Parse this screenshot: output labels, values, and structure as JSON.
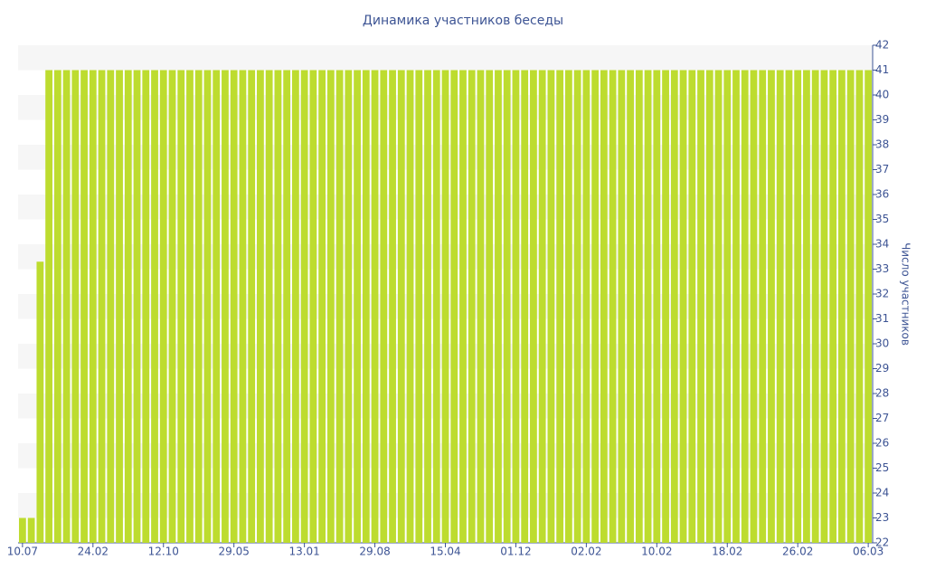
{
  "chart_data": {
    "type": "bar",
    "title": "Динамика участников беседы",
    "y_label": "Число участников",
    "categories": [
      "10.07",
      null,
      null,
      null,
      null,
      null,
      null,
      null,
      "24.02",
      null,
      null,
      null,
      null,
      null,
      null,
      null,
      "12.10",
      null,
      null,
      null,
      null,
      null,
      null,
      null,
      "29.05",
      null,
      null,
      null,
      null,
      null,
      null,
      null,
      "13.01",
      null,
      null,
      null,
      null,
      null,
      null,
      null,
      "29.08",
      null,
      null,
      null,
      null,
      null,
      null,
      null,
      "15.04",
      null,
      null,
      null,
      null,
      null,
      null,
      null,
      "01.12",
      null,
      null,
      null,
      null,
      null,
      null,
      null,
      "02.02",
      null,
      null,
      null,
      null,
      null,
      null,
      null,
      "10.02",
      null,
      null,
      null,
      null,
      null,
      null,
      null,
      "18.02",
      null,
      null,
      null,
      null,
      null,
      null,
      null,
      "26.02",
      null,
      null,
      null,
      null,
      null,
      null,
      null,
      "06.03"
    ],
    "values": [
      23,
      23,
      33.3,
      41,
      41,
      41,
      41,
      41,
      41,
      41,
      41,
      41,
      41,
      41,
      41,
      41,
      41,
      41,
      41,
      41,
      41,
      41,
      41,
      41,
      41,
      41,
      41,
      41,
      41,
      41,
      41,
      41,
      41,
      41,
      41,
      41,
      41,
      41,
      41,
      41,
      41,
      41,
      41,
      41,
      41,
      41,
      41,
      41,
      41,
      41,
      41,
      41,
      41,
      41,
      41,
      41,
      41,
      41,
      41,
      41,
      41,
      41,
      41,
      41,
      41,
      41,
      41,
      41,
      41,
      41,
      41,
      41,
      41,
      41,
      41,
      41,
      41,
      41,
      41,
      41,
      41,
      41,
      41,
      41,
      41,
      41,
      41,
      41,
      41,
      41,
      41,
      41,
      41,
      41,
      41,
      41,
      41
    ],
    "color": "#bddc2f",
    "y_axis_side": "right",
    "grid_bands": true,
    "ylim": [
      22,
      42
    ],
    "yticks": [
      22,
      23,
      24,
      25,
      26,
      27,
      28,
      29,
      30,
      31,
      32,
      33,
      34,
      35,
      36,
      37,
      38,
      39,
      40,
      41,
      42
    ]
  }
}
